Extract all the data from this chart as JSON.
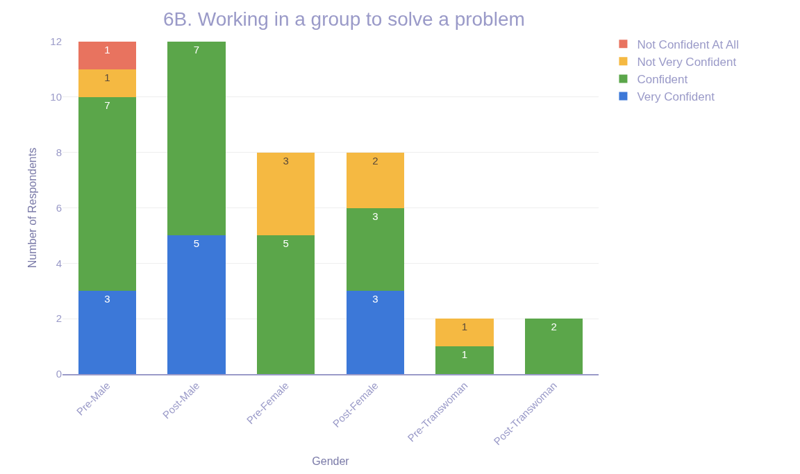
{
  "chart_data": {
    "type": "bar",
    "title": "6B. Working in a group to solve a problem",
    "xlabel": "Gender",
    "ylabel": "Number of Respondents",
    "categories": [
      "Pre-Male",
      "Post-Male",
      "Pre-Female",
      "Post-Female",
      "Pre-Transwoman",
      "Post-Transwoman"
    ],
    "stacked": true,
    "series": [
      {
        "name": "Very Confident",
        "color": "#3c78d8",
        "values": [
          3,
          5,
          null,
          3,
          null,
          null
        ]
      },
      {
        "name": "Confident",
        "color": "#5ba64a",
        "values": [
          7,
          7,
          5,
          3,
          1,
          2
        ]
      },
      {
        "name": "Not Very Confident",
        "color": "#f5b942",
        "values": [
          1,
          null,
          3,
          2,
          1,
          null
        ]
      },
      {
        "name": "Not Confident At All",
        "color": "#e8735f",
        "values": [
          1,
          null,
          null,
          null,
          null,
          null
        ]
      }
    ],
    "ylim": [
      0,
      12
    ],
    "yticks": [
      0,
      2,
      4,
      6,
      8,
      10,
      12
    ],
    "grid": "y",
    "legend": "top right",
    "data_labels": true
  }
}
